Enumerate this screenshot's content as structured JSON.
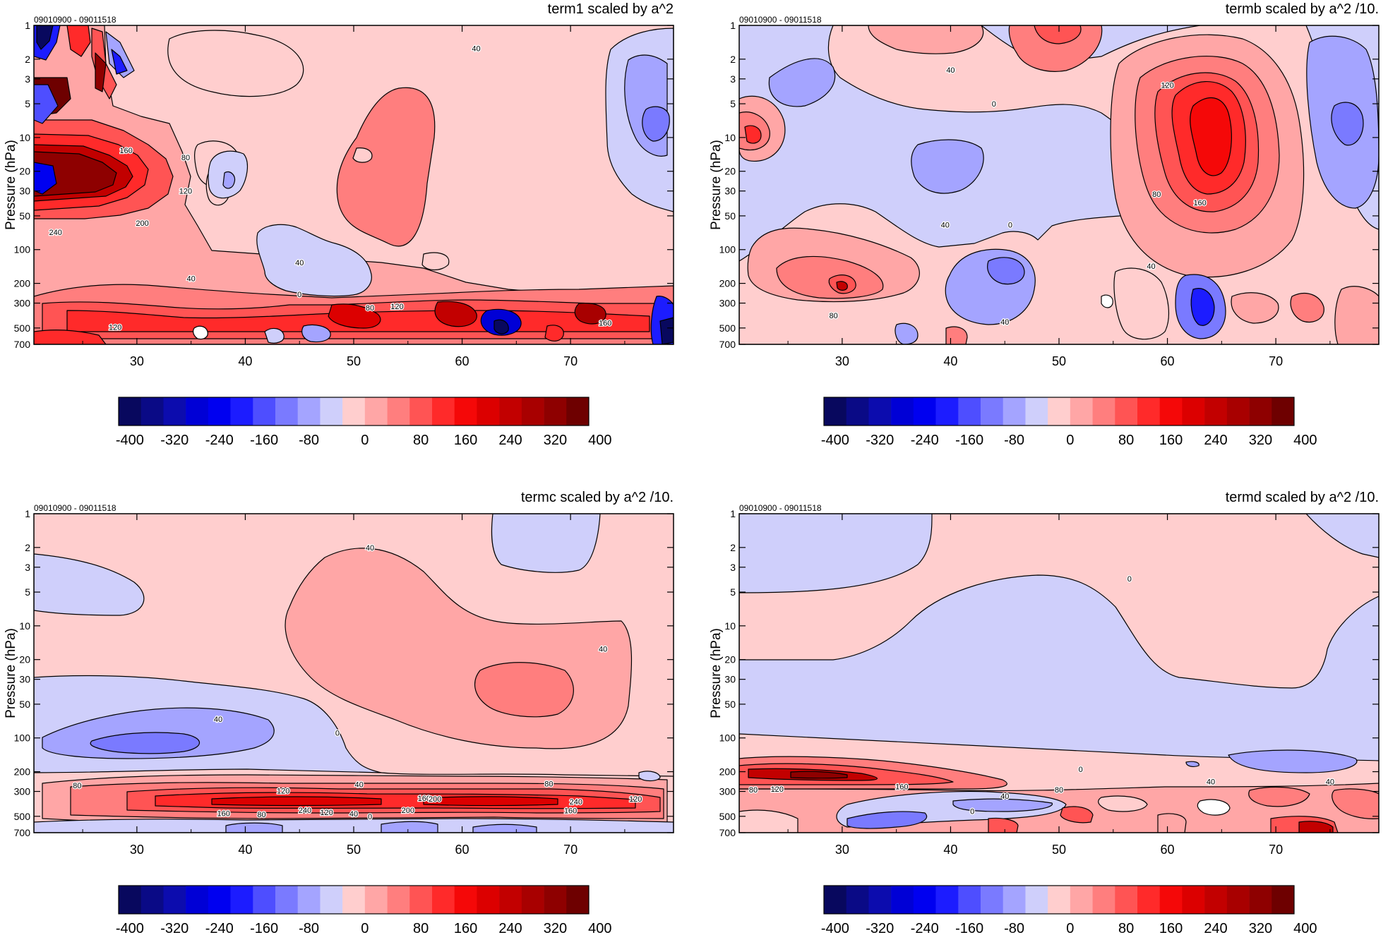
{
  "figure": {
    "colorbar": {
      "colors": [
        "#08085e",
        "#0a0a86",
        "#0c0cae",
        "#0000d6",
        "#0000f0",
        "#1c1cff",
        "#4e4eff",
        "#7a7aff",
        "#a4a4ff",
        "#cfcffb",
        "#ffcece",
        "#ffa6a6",
        "#ff7e7e",
        "#ff5454",
        "#ff2a2a",
        "#f50808",
        "#dc0000",
        "#c20000",
        "#a80000",
        "#8e0000",
        "#6e0000"
      ],
      "tick_labels": [
        "-400",
        "-320",
        "-240",
        "-160",
        "-80",
        "0",
        "80",
        "160",
        "240",
        "320",
        "400"
      ]
    }
  },
  "chart_data": [
    {
      "type": "heatmap",
      "title": "term1 scaled by a^2",
      "subtitle": "09010900 - 09011518",
      "ylabel": "Pressure (hPa)",
      "xlabel": "",
      "x_ticks": [
        "30",
        "40",
        "50",
        "60",
        "70"
      ],
      "y_ticks": [
        "1",
        "2",
        "3",
        "5",
        "10",
        "20",
        "30",
        "50",
        "100",
        "200",
        "300",
        "500",
        "700"
      ],
      "xlim": [
        20.5,
        79.5
      ],
      "y_scale": "log",
      "ylim": [
        1,
        700
      ],
      "y_direction": "down",
      "contour_labels": [
        {
          "text": "40",
          "x": 61.3,
          "y": 1.6
        },
        {
          "text": "160",
          "x": 29.0,
          "y": 13
        },
        {
          "text": "80",
          "x": 34.5,
          "y": 15
        },
        {
          "text": "120",
          "x": 34.5,
          "y": 30
        },
        {
          "text": "200",
          "x": 30.5,
          "y": 58
        },
        {
          "text": "240",
          "x": 22.5,
          "y": 70
        },
        {
          "text": "40",
          "x": 35.0,
          "y": 180
        },
        {
          "text": "40",
          "x": 45.0,
          "y": 130
        },
        {
          "text": "0",
          "x": 45.0,
          "y": 250
        },
        {
          "text": "80",
          "x": 51.5,
          "y": 330
        },
        {
          "text": "120",
          "x": 54.0,
          "y": 320
        },
        {
          "text": "120",
          "x": 28.0,
          "y": 490
        },
        {
          "text": "160",
          "x": 73.2,
          "y": 450
        }
      ]
    },
    {
      "type": "heatmap",
      "title": "termb scaled by a^2 /10.",
      "subtitle": "09010900 - 09011518",
      "ylabel": "Pressure (hPa)",
      "xlabel": "",
      "x_ticks": [
        "30",
        "40",
        "50",
        "60",
        "70"
      ],
      "y_ticks": [
        "1",
        "2",
        "3",
        "5",
        "10",
        "20",
        "30",
        "50",
        "100",
        "200",
        "300",
        "500",
        "700"
      ],
      "xlim": [
        20.5,
        79.5
      ],
      "y_scale": "log",
      "ylim": [
        1,
        700
      ],
      "y_direction": "down",
      "contour_labels": [
        {
          "text": "40",
          "x": 40.0,
          "y": 2.5
        },
        {
          "text": "120",
          "x": 60.0,
          "y": 3.4
        },
        {
          "text": "0",
          "x": 44.0,
          "y": 5.0
        },
        {
          "text": "80",
          "x": 59.0,
          "y": 32
        },
        {
          "text": "160",
          "x": 63.0,
          "y": 38
        },
        {
          "text": "40",
          "x": 58.5,
          "y": 140
        },
        {
          "text": "40",
          "x": 39.5,
          "y": 60
        },
        {
          "text": "0",
          "x": 45.5,
          "y": 60
        },
        {
          "text": "80",
          "x": 29.2,
          "y": 385
        },
        {
          "text": "40",
          "x": 45.0,
          "y": 440
        }
      ]
    },
    {
      "type": "heatmap",
      "title": "termc scaled by a^2 /10.",
      "subtitle": "09010900 - 09011518",
      "ylabel": "Pressure (hPa)",
      "xlabel": "",
      "x_ticks": [
        "30",
        "40",
        "50",
        "60",
        "70"
      ],
      "y_ticks": [
        "1",
        "2",
        "3",
        "5",
        "10",
        "20",
        "30",
        "50",
        "100",
        "200",
        "300",
        "500",
        "700"
      ],
      "xlim": [
        20.5,
        79.5
      ],
      "y_scale": "log",
      "ylim": [
        1,
        700
      ],
      "y_direction": "down",
      "contour_labels": [
        {
          "text": "40",
          "x": 51.5,
          "y": 2.0
        },
        {
          "text": "40",
          "x": 73.0,
          "y": 16
        },
        {
          "text": "40",
          "x": 37.5,
          "y": 68
        },
        {
          "text": "0",
          "x": 48.5,
          "y": 90
        },
        {
          "text": "80",
          "x": 24.5,
          "y": 265
        },
        {
          "text": "40",
          "x": 50.5,
          "y": 260
        },
        {
          "text": "80",
          "x": 68.0,
          "y": 255
        },
        {
          "text": "120",
          "x": 43.5,
          "y": 295
        },
        {
          "text": "160",
          "x": 56.5,
          "y": 345
        },
        {
          "text": "200",
          "x": 57.5,
          "y": 350
        },
        {
          "text": "240",
          "x": 70.5,
          "y": 370
        },
        {
          "text": "120",
          "x": 76.0,
          "y": 350
        },
        {
          "text": "160",
          "x": 38.0,
          "y": 470
        },
        {
          "text": "80",
          "x": 41.5,
          "y": 480
        },
        {
          "text": "240",
          "x": 45.5,
          "y": 440
        },
        {
          "text": "120",
          "x": 47.5,
          "y": 460
        },
        {
          "text": "40",
          "x": 50.0,
          "y": 475
        },
        {
          "text": "0",
          "x": 51.5,
          "y": 500
        },
        {
          "text": "200",
          "x": 55.0,
          "y": 440
        },
        {
          "text": "160",
          "x": 70.0,
          "y": 445
        }
      ]
    },
    {
      "type": "heatmap",
      "title": "termd scaled by a^2 /10.",
      "subtitle": "09010900 - 09011518",
      "ylabel": "Pressure (hPa)",
      "xlabel": "",
      "x_ticks": [
        "30",
        "40",
        "50",
        "60",
        "70"
      ],
      "y_ticks": [
        "1",
        "2",
        "3",
        "5",
        "10",
        "20",
        "30",
        "50",
        "100",
        "200",
        "300",
        "500",
        "700"
      ],
      "xlim": [
        20.5,
        79.5
      ],
      "y_scale": "log",
      "ylim": [
        1,
        700
      ],
      "y_direction": "down",
      "contour_labels": [
        {
          "text": "0",
          "x": 56.5,
          "y": 3.8
        },
        {
          "text": "0",
          "x": 52.0,
          "y": 190
        },
        {
          "text": "40",
          "x": 64.0,
          "y": 245
        },
        {
          "text": "40",
          "x": 75.0,
          "y": 245
        },
        {
          "text": "80",
          "x": 21.8,
          "y": 290
        },
        {
          "text": "120",
          "x": 24.0,
          "y": 285
        },
        {
          "text": "160",
          "x": 35.5,
          "y": 270
        },
        {
          "text": "80",
          "x": 50.0,
          "y": 290
        },
        {
          "text": "40",
          "x": 45.0,
          "y": 330
        },
        {
          "text": "0",
          "x": 42.0,
          "y": 450
        }
      ]
    }
  ]
}
